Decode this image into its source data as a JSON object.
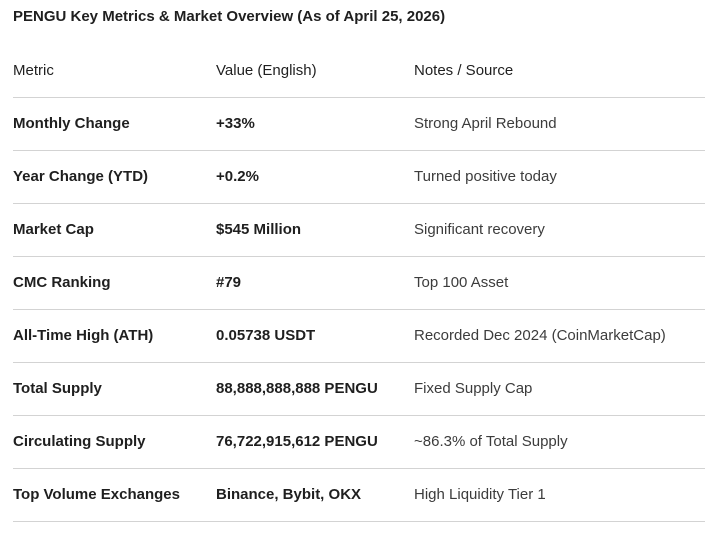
{
  "title": "PENGU Key Metrics & Market Overview (As of April 25, 2026)",
  "table": {
    "headers": {
      "metric": "Metric",
      "value": "Value (English)",
      "notes": "Notes / Source"
    },
    "rows": [
      {
        "metric": "Monthly Change",
        "value": "+33%",
        "notes": "Strong April Rebound"
      },
      {
        "metric": "Year Change (YTD)",
        "value": "+0.2%",
        "notes": "Turned positive today"
      },
      {
        "metric": "Market Cap",
        "value": "$545 Million",
        "notes": "Significant recovery"
      },
      {
        "metric": "CMC Ranking",
        "value": "#79",
        "notes": "Top 100 Asset"
      },
      {
        "metric": "All-Time High (ATH)",
        "value": "0.05738 USDT",
        "notes": "Recorded Dec 2024 (CoinMarketCap)"
      },
      {
        "metric": "Total Supply",
        "value": "88,888,888,888 PENGU",
        "notes": "Fixed Supply Cap"
      },
      {
        "metric": "Circulating Supply",
        "value": "76,722,915,612 PENGU",
        "notes": "~86.3% of Total Supply"
      },
      {
        "metric": "Top Volume Exchanges",
        "value": "Binance, Bybit, OKX",
        "notes": "High Liquidity Tier 1"
      }
    ]
  }
}
